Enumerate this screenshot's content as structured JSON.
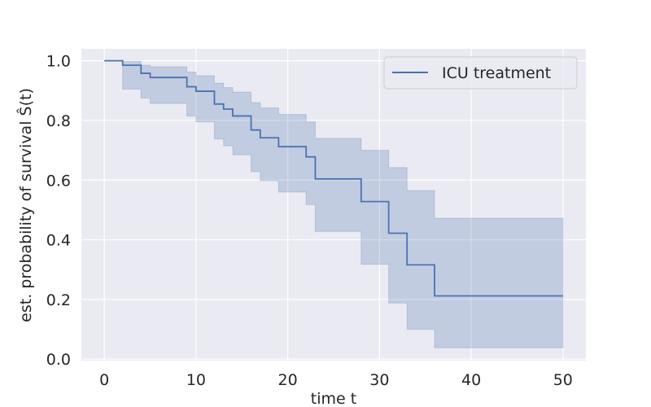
{
  "chart_data": {
    "type": "line",
    "title": "",
    "xlabel": "time t",
    "ylabel": "est. probability of survival Ŝ(t)",
    "xlim": [
      -2.5,
      52.5
    ],
    "ylim": [
      -0.005,
      1.04
    ],
    "xticks": [
      0,
      10,
      20,
      30,
      40,
      50
    ],
    "yticks": [
      0.0,
      0.2,
      0.4,
      0.6,
      0.8,
      1.0
    ],
    "xtick_labels": [
      "0",
      "10",
      "20",
      "30",
      "40",
      "50"
    ],
    "ytick_labels": [
      "0.0",
      "0.2",
      "0.4",
      "0.6",
      "0.8",
      "1.0"
    ],
    "grid": true,
    "legend_position": "top-right",
    "series": [
      {
        "name": "ICU treatment",
        "color": "#4c72b0",
        "band_color": "#4c72b0",
        "step": "post",
        "x": [
          0,
          2,
          4,
          5,
          9,
          10,
          12,
          13,
          14,
          16,
          17,
          19,
          22,
          23,
          28,
          31,
          33,
          36,
          50
        ],
        "y": [
          1.0,
          0.985,
          0.958,
          0.944,
          0.913,
          0.898,
          0.855,
          0.838,
          0.815,
          0.768,
          0.742,
          0.712,
          0.678,
          0.604,
          0.528,
          0.422,
          0.316,
          0.212,
          0.212
        ],
        "lower": [
          1.0,
          0.905,
          0.875,
          0.857,
          0.815,
          0.795,
          0.738,
          0.715,
          0.685,
          0.628,
          0.598,
          0.56,
          0.518,
          0.428,
          0.318,
          0.188,
          0.1,
          0.038,
          0.038
        ],
        "upper": [
          1.0,
          0.998,
          0.985,
          0.98,
          0.962,
          0.95,
          0.925,
          0.91,
          0.895,
          0.86,
          0.842,
          0.82,
          0.795,
          0.74,
          0.7,
          0.642,
          0.565,
          0.472,
          0.472
        ]
      }
    ]
  },
  "style": {
    "plot_bg": "#eaeaf2",
    "grid_color": "#ffffff",
    "text_color": "#262626"
  }
}
